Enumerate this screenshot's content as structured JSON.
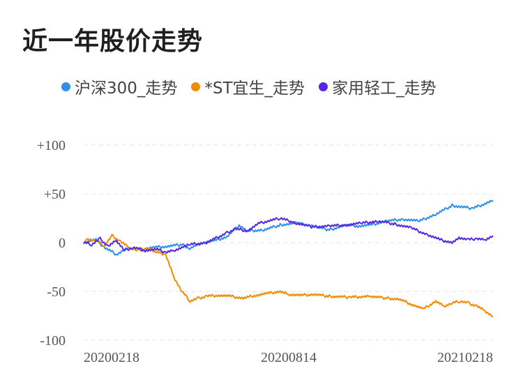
{
  "title": "近一年股价走势",
  "chart_data": {
    "type": "line",
    "x_labels": [
      "20200218",
      "20200814",
      "20210218"
    ],
    "y_ticks": [
      "+100",
      "+50",
      "0",
      "-50",
      "-100"
    ],
    "y_tick_values": [
      100,
      50,
      0,
      -50,
      -100
    ],
    "ylim": [
      -100,
      100
    ],
    "grid": true,
    "legend_position": "top",
    "series": [
      {
        "name": "沪深300_走势",
        "color": "#2f8fe8",
        "x": [
          0,
          3,
          5,
          8,
          10,
          12,
          14,
          17,
          20,
          24,
          26,
          29,
          32,
          35,
          38,
          40,
          44,
          48,
          52,
          56,
          60,
          64,
          67,
          70,
          74,
          78,
          82,
          86,
          90,
          95,
          100
        ],
        "values": [
          0,
          3,
          -5,
          -12,
          -7,
          -5,
          -7,
          -5,
          -4,
          -2,
          -6,
          0,
          2,
          6,
          18,
          12,
          13,
          18,
          20,
          17,
          13,
          18,
          17,
          18,
          22,
          24,
          22,
          29,
          38,
          35,
          43
        ]
      },
      {
        "name": "*ST宜生_走势",
        "color": "#f08c00",
        "x": [
          0,
          1,
          3,
          5,
          7,
          9,
          11,
          13,
          15,
          17,
          18,
          20,
          22,
          24,
          26,
          28,
          30,
          33,
          36,
          39,
          42,
          45,
          48,
          50,
          53,
          56,
          60,
          65,
          70,
          74,
          77,
          80,
          83,
          86,
          88,
          90,
          92,
          94,
          96,
          98,
          100
        ],
        "values": [
          0,
          4,
          2,
          -3,
          7,
          1,
          -5,
          -8,
          -6,
          -8,
          -10,
          -12,
          -35,
          -50,
          -60,
          -57,
          -55,
          -54,
          -55,
          -57,
          -54,
          -52,
          -50,
          -53,
          -54,
          -53,
          -55,
          -56,
          -55,
          -57,
          -58,
          -63,
          -68,
          -60,
          -65,
          -62,
          -60,
          -62,
          -65,
          -70,
          -76
        ]
      },
      {
        "name": "家用轻工_走势",
        "color": "#5628e6",
        "x": [
          0,
          2,
          4,
          6,
          8,
          10,
          12,
          15,
          18,
          20,
          22,
          26,
          30,
          35,
          37,
          40,
          43,
          48,
          52,
          56,
          60,
          64,
          68,
          72,
          76,
          80,
          84,
          87,
          90,
          92,
          94,
          96,
          98,
          100
        ],
        "values": [
          0,
          -2,
          4,
          -4,
          2,
          -8,
          -5,
          -8,
          -7,
          -10,
          -8,
          -2,
          0,
          10,
          14,
          12,
          20,
          25,
          20,
          16,
          17,
          18,
          20,
          22,
          19,
          15,
          8,
          3,
          0,
          5,
          3,
          4,
          3,
          7
        ]
      }
    ]
  }
}
